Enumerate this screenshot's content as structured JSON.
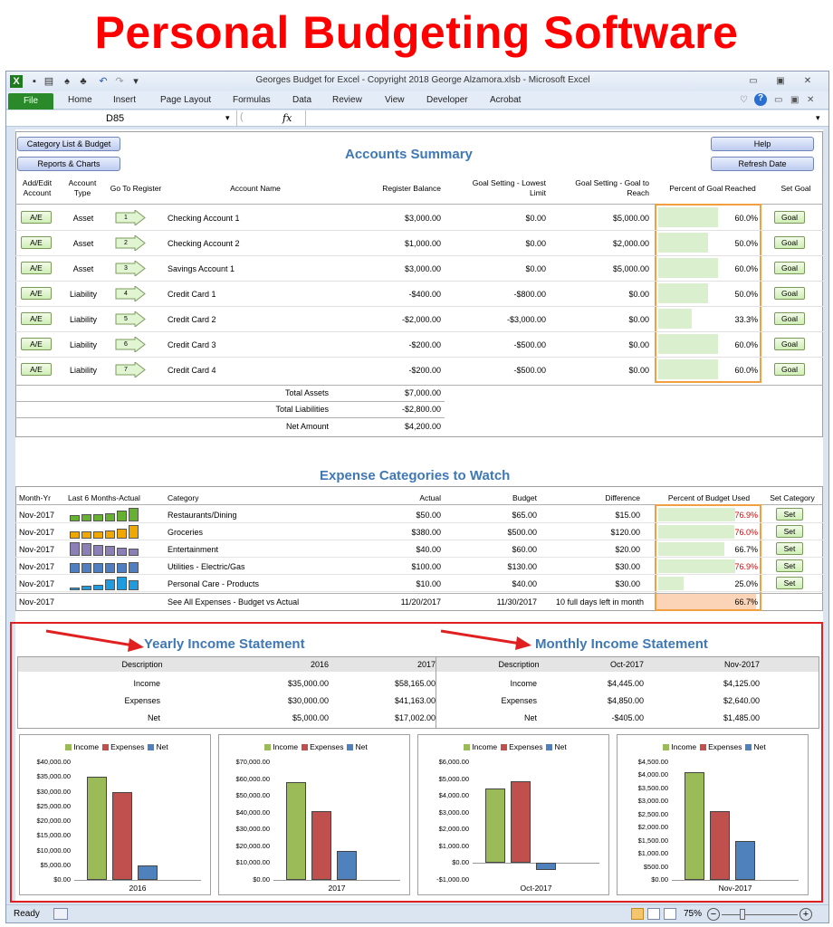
{
  "headline": "Personal Budgeting Software",
  "window": {
    "title": "Georges Budget for Excel - Copyright 2018 George Alzamora.xlsb  -  Microsoft Excel"
  },
  "ribbon": {
    "file": "File",
    "tabs": [
      "Home",
      "Insert",
      "Page Layout",
      "Formulas",
      "Data",
      "Review",
      "View",
      "Developer",
      "Acrobat"
    ]
  },
  "formula_bar": {
    "name_box": "D85",
    "fx": "fx"
  },
  "buttons": {
    "category_list": "Category List & Budget",
    "reports": "Reports & Charts",
    "help": "Help",
    "refresh": "Refresh Date"
  },
  "accounts": {
    "title": "Accounts Summary",
    "headers": {
      "ae": "Add/Edit Account",
      "type": "Account Type",
      "goto": "Go To Register",
      "name": "Account Name",
      "balance": "Register Balance",
      "lowest": "Goal Setting - Lowest Limit",
      "reach": "Goal Setting - Goal to Reach",
      "pct": "Percent of Goal Reached",
      "setgoal": "Set Goal"
    },
    "ae_label": "A/E",
    "goal_label": "Goal",
    "rows": [
      {
        "type": "Asset",
        "reg": "1",
        "name": "Checking Account 1",
        "balance": "$3,000.00",
        "lowest": "$0.00",
        "reach": "$5,000.00",
        "pct": "60.0%",
        "frac": 0.6
      },
      {
        "type": "Asset",
        "reg": "2",
        "name": "Checking Account 2",
        "balance": "$1,000.00",
        "lowest": "$0.00",
        "reach": "$2,000.00",
        "pct": "50.0%",
        "frac": 0.5
      },
      {
        "type": "Asset",
        "reg": "3",
        "name": "Savings Account 1",
        "balance": "$3,000.00",
        "lowest": "$0.00",
        "reach": "$5,000.00",
        "pct": "60.0%",
        "frac": 0.6
      },
      {
        "type": "Liability",
        "reg": "4",
        "name": "Credit Card 1",
        "balance": "-$400.00",
        "lowest": "-$800.00",
        "reach": "$0.00",
        "pct": "50.0%",
        "frac": 0.5
      },
      {
        "type": "Liability",
        "reg": "5",
        "name": "Credit Card 2",
        "balance": "-$2,000.00",
        "lowest": "-$3,000.00",
        "reach": "$0.00",
        "pct": "33.3%",
        "frac": 0.333
      },
      {
        "type": "Liability",
        "reg": "6",
        "name": "Credit Card 3",
        "balance": "-$200.00",
        "lowest": "-$500.00",
        "reach": "$0.00",
        "pct": "60.0%",
        "frac": 0.6
      },
      {
        "type": "Liability",
        "reg": "7",
        "name": "Credit Card 4",
        "balance": "-$200.00",
        "lowest": "-$500.00",
        "reach": "$0.00",
        "pct": "60.0%",
        "frac": 0.6
      }
    ],
    "totals": [
      {
        "label": "Total Assets",
        "value": "$7,000.00"
      },
      {
        "label": "Total Liabilities",
        "value": "-$2,800.00"
      },
      {
        "label": "Net Amount",
        "value": "$4,200.00"
      }
    ]
  },
  "expenses": {
    "title": "Expense Categories to Watch",
    "headers": {
      "month": "Month-Yr",
      "last6": "Last 6 Months-Actual",
      "category": "Category",
      "actual": "Actual",
      "budget": "Budget",
      "diff": "Difference",
      "pct": "Percent of Budget Used",
      "set": "Set Category"
    },
    "set_label": "Set",
    "rows": [
      {
        "month": "Nov-2017",
        "category": "Restaurants/Dining",
        "actual": "$50.00",
        "budget": "$65.00",
        "diff": "$15.00",
        "pct": "76.9%",
        "frac": 0.769,
        "over": true,
        "color": "#66b032",
        "spark": [
          0.45,
          0.5,
          0.55,
          0.6,
          0.8,
          1.0
        ]
      },
      {
        "month": "Nov-2017",
        "category": "Groceries",
        "actual": "$380.00",
        "budget": "$500.00",
        "diff": "$120.00",
        "pct": "76.0%",
        "frac": 0.76,
        "over": true,
        "color": "#f0a800",
        "spark": [
          0.5,
          0.55,
          0.55,
          0.6,
          0.75,
          1.0
        ]
      },
      {
        "month": "Nov-2017",
        "category": "Entertainment",
        "actual": "$40.00",
        "budget": "$60.00",
        "diff": "$20.00",
        "pct": "66.7%",
        "frac": 0.667,
        "over": false,
        "color": "#8b7fb5",
        "spark": [
          1.0,
          0.95,
          0.8,
          0.7,
          0.6,
          0.55
        ]
      },
      {
        "month": "Nov-2017",
        "category": "Utilities - Electric/Gas",
        "actual": "$100.00",
        "budget": "$130.00",
        "diff": "$30.00",
        "pct": "76.9%",
        "frac": 0.769,
        "over": true,
        "color": "#4f7fc0",
        "spark": [
          0.7,
          0.7,
          0.7,
          0.7,
          0.7,
          0.8
        ]
      },
      {
        "month": "Nov-2017",
        "category": "Personal Care - Products",
        "actual": "$10.00",
        "budget": "$40.00",
        "diff": "$30.00",
        "pct": "25.0%",
        "frac": 0.25,
        "over": false,
        "color": "#1f9be0",
        "spark": [
          0.2,
          0.3,
          0.4,
          0.8,
          1.0,
          0.75
        ]
      }
    ],
    "summary": {
      "month": "Nov-2017",
      "label": "See All Expenses - Budget vs Actual",
      "actual": "11/20/2017",
      "budget": "11/30/2017",
      "diff": "10 full days left in month",
      "pct": "66.7%"
    }
  },
  "yearly": {
    "title": "Yearly Income Statement",
    "headers": [
      "Description",
      "2016",
      "2017"
    ],
    "rows": [
      [
        "Income",
        "$35,000.00",
        "$58,165.00"
      ],
      [
        "Expenses",
        "$30,000.00",
        "$41,163.00"
      ],
      [
        "Net",
        "$5,000.00",
        "$17,002.00"
      ]
    ]
  },
  "monthly": {
    "title": "Monthly Income Statement",
    "headers": [
      "Description",
      "Oct-2017",
      "Nov-2017"
    ],
    "rows": [
      [
        "Income",
        "$4,445.00",
        "$4,125.00"
      ],
      [
        "Expenses",
        "$4,850.00",
        "$2,640.00"
      ],
      [
        "Net",
        "-$405.00",
        "$1,485.00"
      ]
    ]
  },
  "colors": {
    "income": "#9bbb59",
    "expenses": "#c0504d",
    "net": "#4f81bd",
    "accent": "#3f78b5",
    "red_border": "#e02020"
  },
  "chart_data": [
    {
      "type": "bar",
      "categories": [
        "2016"
      ],
      "series": [
        {
          "name": "Income",
          "values": [
            35000
          ]
        },
        {
          "name": "Expenses",
          "values": [
            30000
          ]
        },
        {
          "name": "Net",
          "values": [
            5000
          ]
        }
      ],
      "ylim": [
        0,
        40000
      ],
      "ticks": [
        "$40,000.00",
        "$35,000.00",
        "$30,000.00",
        "$25,000.00",
        "$20,000.00",
        "$15,000.00",
        "$10,000.00",
        "$5,000.00",
        "$0.00"
      ]
    },
    {
      "type": "bar",
      "categories": [
        "2017"
      ],
      "series": [
        {
          "name": "Income",
          "values": [
            58165
          ]
        },
        {
          "name": "Expenses",
          "values": [
            41163
          ]
        },
        {
          "name": "Net",
          "values": [
            17002
          ]
        }
      ],
      "ylim": [
        0,
        70000
      ],
      "ticks": [
        "$70,000.00",
        "$60,000.00",
        "$50,000.00",
        "$40,000.00",
        "$30,000.00",
        "$20,000.00",
        "$10,000.00",
        "$0.00"
      ]
    },
    {
      "type": "bar",
      "categories": [
        "Oct-2017"
      ],
      "series": [
        {
          "name": "Income",
          "values": [
            4445
          ]
        },
        {
          "name": "Expenses",
          "values": [
            4850
          ]
        },
        {
          "name": "Net",
          "values": [
            -405
          ]
        }
      ],
      "ylim": [
        -1000,
        6000
      ],
      "ticks": [
        "$6,000.00",
        "$5,000.00",
        "$4,000.00",
        "$3,000.00",
        "$2,000.00",
        "$1,000.00",
        "$0.00",
        "-$1,000.00"
      ]
    },
    {
      "type": "bar",
      "categories": [
        "Nov-2017"
      ],
      "series": [
        {
          "name": "Income",
          "values": [
            4125
          ]
        },
        {
          "name": "Expenses",
          "values": [
            2640
          ]
        },
        {
          "name": "Net",
          "values": [
            1485
          ]
        }
      ],
      "ylim": [
        0,
        4500
      ],
      "ticks": [
        "$4,500.00",
        "$4,000.00",
        "$3,500.00",
        "$3,000.00",
        "$2,500.00",
        "$2,000.00",
        "$1,500.00",
        "$1,000.00",
        "$500.00",
        "$0.00"
      ]
    }
  ],
  "status": {
    "ready": "Ready",
    "zoom": "75%"
  }
}
